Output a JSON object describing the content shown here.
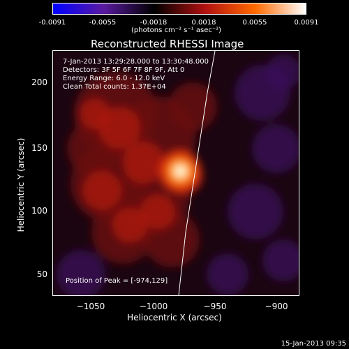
{
  "colorbar": {
    "ticks": [
      "-0.0091",
      "-0.0055",
      "-0.0018",
      "0.0018",
      "0.0055",
      "0.0091"
    ],
    "units": "(photons cm⁻² s⁻¹ asec⁻²)"
  },
  "title": "Reconstructed RHESSI Image",
  "axes": {
    "xlabel": "Heliocentric X (arcsec)",
    "ylabel": "Heliocentric Y (arcsec)",
    "xticks": [
      "−1050",
      "−1000",
      "−950",
      "−900"
    ],
    "yticks": [
      "200",
      "150",
      "100",
      "50"
    ]
  },
  "annotations": {
    "time": "7-Jan-2013 13:29:28.000 to 13:30:48.000",
    "detectors": "Detectors: 3F 5F 6F 7F 8F 9F, Att 0",
    "energy": "Energy Range: 6.0 - 12.0 keV",
    "clean": "Clean    Total counts: 1.37E+04",
    "peak": "Position of Peak = [-974,129]"
  },
  "footer": {
    "timestamp": "15-Jan-2013 09:35"
  },
  "chart_data": {
    "type": "heatmap",
    "title": "Reconstructed RHESSI Image",
    "xlabel": "Heliocentric X (arcsec)",
    "ylabel": "Heliocentric Y (arcsec)",
    "xlim": [
      -1075,
      -880
    ],
    "ylim": [
      30,
      225
    ],
    "colorbar_range": [
      -0.0091,
      0.0091
    ],
    "peak": [
      -974,
      129
    ],
    "colormap": [
      "#0000ff",
      "#5a1aa0",
      "#000000",
      "#b01010",
      "#ff6a00",
      "#ffffff"
    ]
  }
}
